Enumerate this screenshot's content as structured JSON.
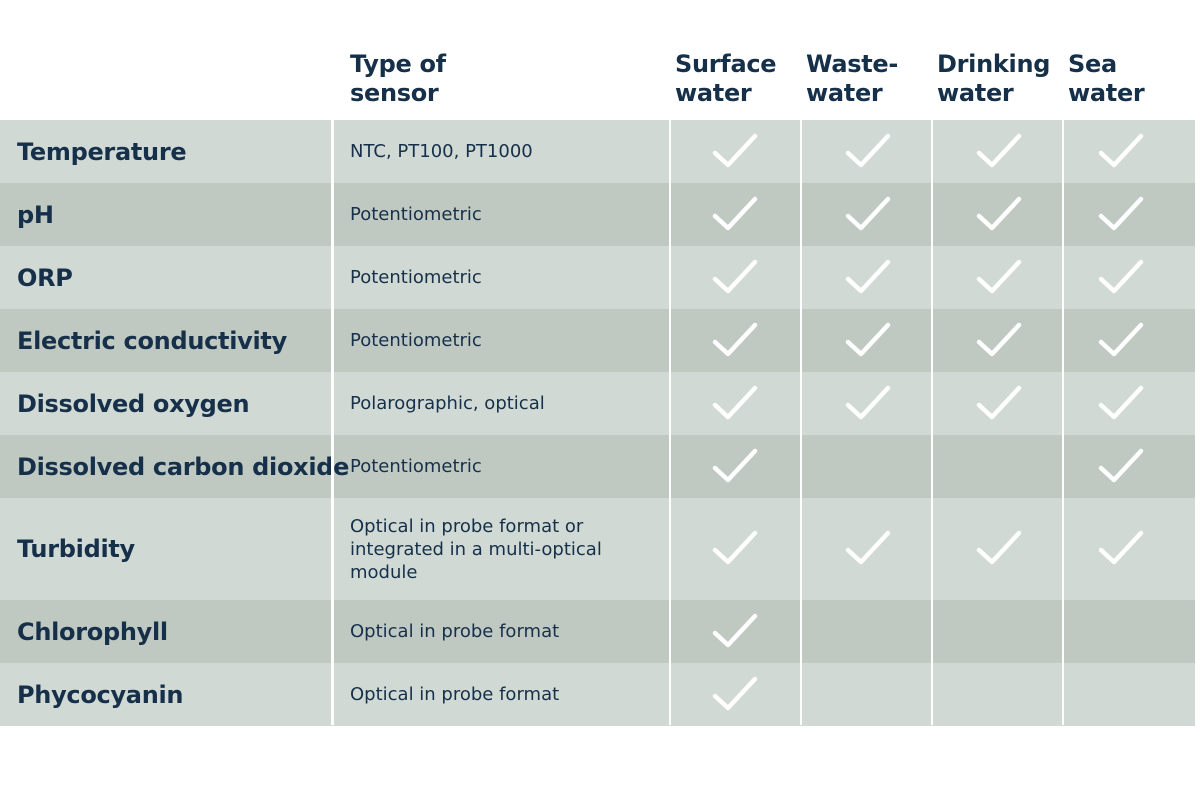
{
  "header": {
    "type_of_sensor": [
      "Type of",
      "sensor"
    ],
    "columns": [
      [
        "Surface",
        "water"
      ],
      [
        "Waste-",
        "water"
      ],
      [
        "Drinking",
        "water"
      ],
      [
        "Sea",
        "water"
      ]
    ]
  },
  "rows": [
    {
      "parameter": "Temperature",
      "sensor_type": "NTC, PT100, PT1000",
      "checks": [
        true,
        true,
        true,
        true
      ]
    },
    {
      "parameter": "pH",
      "sensor_type": "Potentiometric",
      "checks": [
        true,
        true,
        true,
        true
      ]
    },
    {
      "parameter": "ORP",
      "sensor_type": "Potentiometric",
      "checks": [
        true,
        true,
        true,
        true
      ]
    },
    {
      "parameter": "Electric conductivity",
      "sensor_type": "Potentiometric",
      "checks": [
        true,
        true,
        true,
        true
      ]
    },
    {
      "parameter": "Dissolved oxygen",
      "sensor_type": "Polarographic, optical",
      "checks": [
        true,
        true,
        true,
        true
      ]
    },
    {
      "parameter": "Dissolved carbon dioxide",
      "sensor_type": "Potentiometric",
      "checks": [
        true,
        false,
        false,
        true
      ]
    },
    {
      "parameter": "Turbidity",
      "sensor_type": [
        "Optical in probe format or",
        "integrated in a multi-optical",
        "module"
      ],
      "checks": [
        true,
        true,
        true,
        true
      ]
    },
    {
      "parameter": "Chlorophyll",
      "sensor_type": "Optical in probe format",
      "checks": [
        true,
        false,
        false,
        false
      ]
    },
    {
      "parameter": "Phycocyanin",
      "sensor_type": "Optical in probe format",
      "checks": [
        true,
        false,
        false,
        false
      ]
    }
  ],
  "colors": {
    "text": "#16304a",
    "row_light": "#d0d9d4",
    "row_dark": "#bfc9c2",
    "check": "#ffffff"
  },
  "icons": {
    "check": "checkmark-icon"
  }
}
